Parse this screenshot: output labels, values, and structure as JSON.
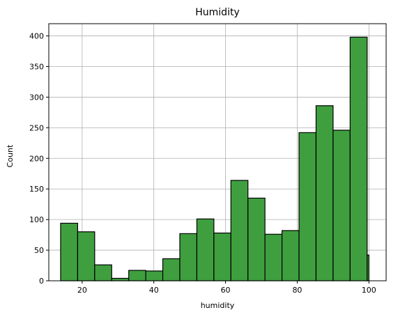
{
  "chart_data": {
    "type": "bar",
    "title": "Humidity",
    "xlabel": "humidity",
    "ylabel": "Count",
    "xlim": [
      10.7,
      104.8
    ],
    "ylim": [
      0,
      420
    ],
    "xticks": [
      20,
      40,
      60,
      80,
      100
    ],
    "yticks": [
      0,
      50,
      100,
      150,
      200,
      250,
      300,
      350,
      400
    ],
    "grid": true,
    "bar_color": "#3f9f3f",
    "edge_color": "#000000",
    "bins": [
      {
        "x0": 14.0,
        "x1": 18.75,
        "count": 94
      },
      {
        "x0": 18.75,
        "x1": 23.5,
        "count": 80
      },
      {
        "x0": 23.5,
        "x1": 28.25,
        "count": 26
      },
      {
        "x0": 28.25,
        "x1": 33.0,
        "count": 4
      },
      {
        "x0": 33.0,
        "x1": 37.75,
        "count": 17
      },
      {
        "x0": 37.75,
        "x1": 42.5,
        "count": 16
      },
      {
        "x0": 42.5,
        "x1": 47.25,
        "count": 36
      },
      {
        "x0": 47.25,
        "x1": 52.0,
        "count": 77
      },
      {
        "x0": 52.0,
        "x1": 56.75,
        "count": 101
      },
      {
        "x0": 56.75,
        "x1": 61.5,
        "count": 78
      },
      {
        "x0": 61.5,
        "x1": 66.25,
        "count": 164
      },
      {
        "x0": 66.25,
        "x1": 71.0,
        "count": 135
      },
      {
        "x0": 71.0,
        "x1": 75.75,
        "count": 76
      },
      {
        "x0": 75.75,
        "x1": 80.5,
        "count": 82
      },
      {
        "x0": 80.5,
        "x1": 85.25,
        "count": 242
      },
      {
        "x0": 85.25,
        "x1": 90.0,
        "count": 286
      },
      {
        "x0": 90.0,
        "x1": 94.75,
        "count": 246
      },
      {
        "x0": 94.75,
        "x1": 99.5,
        "count": 398
      },
      {
        "x0": 99.5,
        "x1": 100.0,
        "count": 42
      }
    ]
  }
}
